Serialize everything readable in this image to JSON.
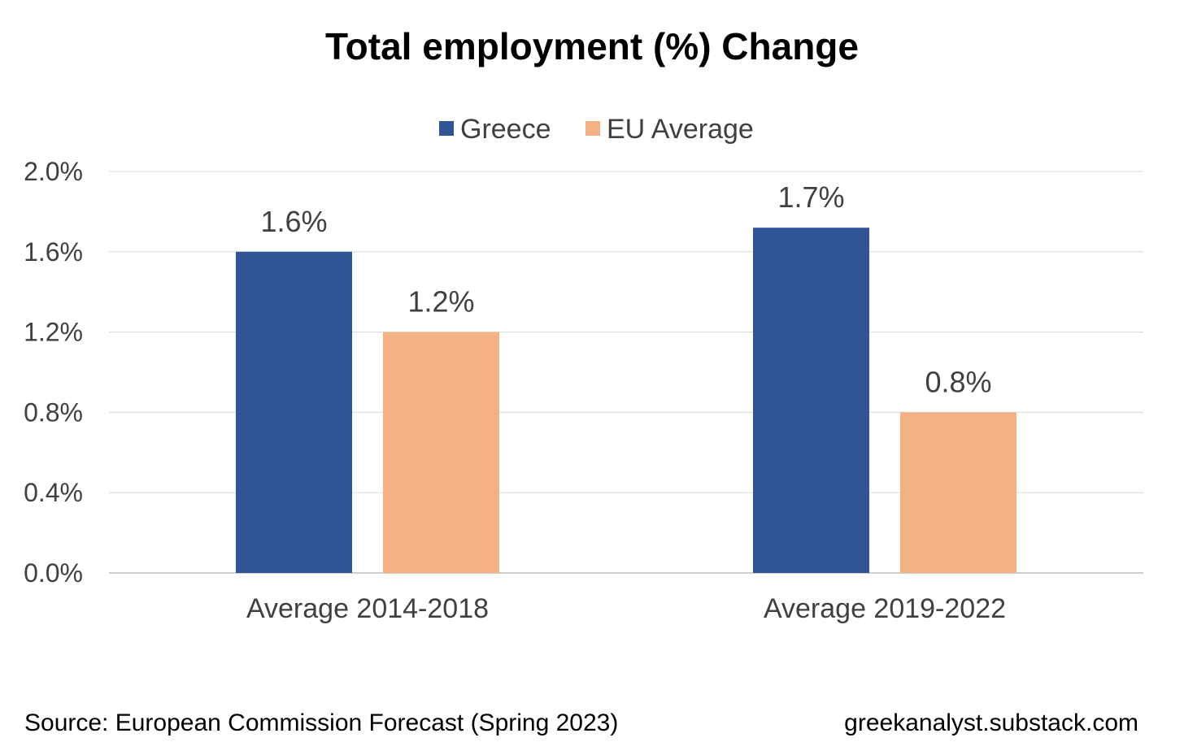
{
  "chart_data": {
    "type": "bar",
    "title": "Total employment (%) Change",
    "categories": [
      "Average 2014-2018",
      "Average 2019-2022"
    ],
    "series": [
      {
        "name": "Greece",
        "values": [
          1.6,
          1.72
        ],
        "labels": [
          "1.6%",
          "1.7%"
        ],
        "color": "#2f5596"
      },
      {
        "name": "EU Average",
        "values": [
          1.2,
          0.8
        ],
        "labels": [
          "1.2%",
          "0.8%"
        ],
        "color": "#f4b183"
      }
    ],
    "ylim": [
      0,
      2.0
    ],
    "yticks": [
      "0.0%",
      "0.4%",
      "0.8%",
      "1.2%",
      "1.6%",
      "2.0%"
    ],
    "grid": true,
    "legend_position": "top",
    "xlabel": "",
    "ylabel": ""
  },
  "footer": {
    "source": "Source: European Commission Forecast (Spring 2023)",
    "website": "greekanalyst.substack.com"
  }
}
